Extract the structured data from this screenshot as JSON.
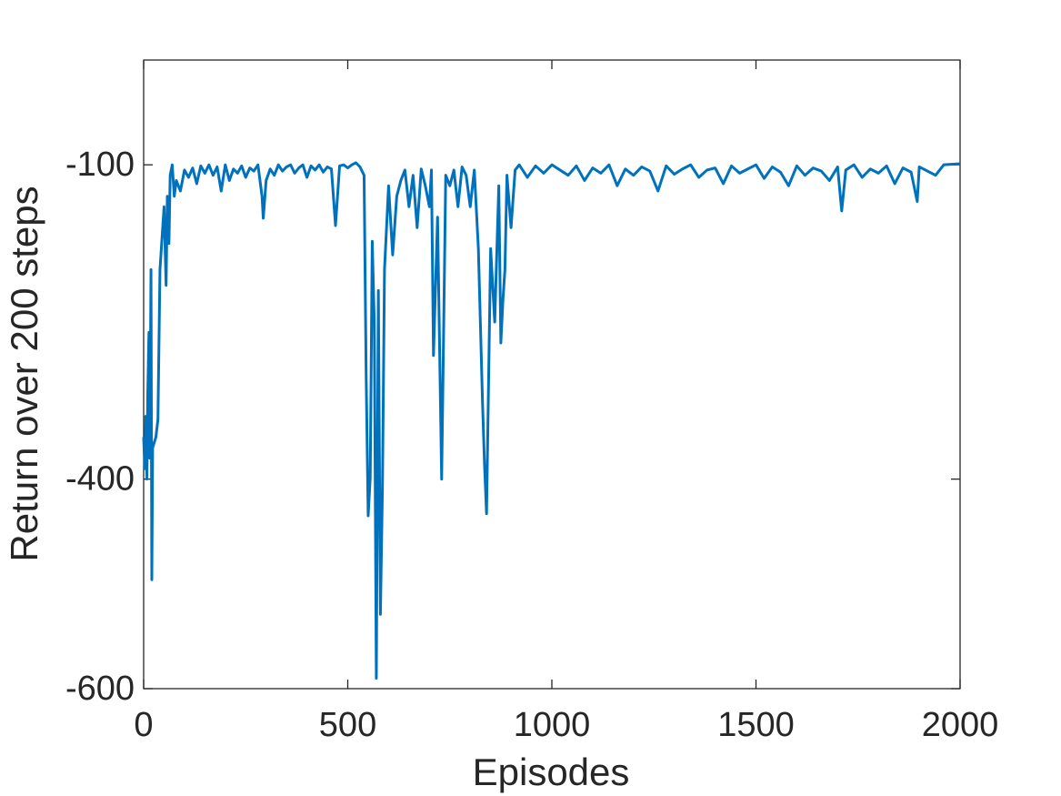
{
  "chart_data": {
    "type": "line",
    "xlabel": "Episodes",
    "ylabel": "Return over 200 steps",
    "xlim": [
      0,
      2000
    ],
    "xticks": [
      0,
      500,
      1000,
      1500,
      2000
    ],
    "ylim": [
      -600,
      0
    ],
    "yticks": [
      -600,
      -400,
      -100
    ],
    "x": [
      0,
      3,
      5,
      8,
      10,
      13,
      15,
      18,
      20,
      22,
      30,
      35,
      40,
      45,
      50,
      55,
      58,
      62,
      65,
      70,
      75,
      80,
      90,
      100,
      110,
      120,
      130,
      140,
      150,
      160,
      170,
      180,
      190,
      200,
      210,
      220,
      230,
      240,
      250,
      260,
      270,
      280,
      290,
      293,
      300,
      310,
      320,
      330,
      340,
      350,
      360,
      370,
      380,
      390,
      400,
      410,
      420,
      430,
      440,
      450,
      460,
      470,
      480,
      490,
      500,
      510,
      520,
      530,
      540,
      545,
      550,
      555,
      560,
      565,
      570,
      575,
      580,
      585,
      590,
      600,
      610,
      620,
      630,
      640,
      650,
      660,
      670,
      680,
      690,
      700,
      705,
      710,
      720,
      730,
      740,
      750,
      760,
      770,
      780,
      790,
      800,
      810,
      820,
      830,
      835,
      840,
      850,
      860,
      870,
      875,
      880,
      885,
      890,
      900,
      910,
      920,
      940,
      960,
      980,
      1000,
      1020,
      1040,
      1060,
      1080,
      1100,
      1120,
      1140,
      1160,
      1180,
      1200,
      1220,
      1240,
      1260,
      1280,
      1300,
      1320,
      1340,
      1360,
      1380,
      1400,
      1420,
      1440,
      1460,
      1480,
      1500,
      1520,
      1540,
      1560,
      1580,
      1600,
      1620,
      1640,
      1660,
      1680,
      1700,
      1710,
      1720,
      1740,
      1760,
      1780,
      1800,
      1820,
      1840,
      1860,
      1880,
      1895,
      1900,
      1940,
      1960,
      2000
    ],
    "series": [
      {
        "color": "#0072bd",
        "values": [
          -360,
          -390,
          -340,
          -400,
          -320,
          -260,
          -380,
          -200,
          -496,
          -370,
          -360,
          -343,
          -200,
          -170,
          -140,
          -215,
          -130,
          -175,
          -110,
          -100,
          -130,
          -115,
          -125,
          -105,
          -112,
          -103,
          -118,
          -101,
          -108,
          -100,
          -110,
          -102,
          -125,
          -100,
          -115,
          -104,
          -108,
          -101,
          -112,
          -103,
          -106,
          -100,
          -130,
          -151,
          -115,
          -104,
          -110,
          -100,
          -106,
          -102,
          -100,
          -108,
          -103,
          -100,
          -112,
          -101,
          -105,
          -100,
          -107,
          -102,
          -104,
          -158,
          -101,
          -100,
          -103,
          -100,
          -98,
          -102,
          -110,
          -299,
          -435,
          -399,
          -173,
          -250,
          -590,
          -220,
          -529,
          -408,
          -200,
          -120,
          -186,
          -130,
          -115,
          -105,
          -140,
          -110,
          -160,
          -104,
          -120,
          -140,
          -105,
          -282,
          -150,
          -400,
          -110,
          -120,
          -105,
          -140,
          -102,
          -110,
          -140,
          -105,
          -180,
          -325,
          -386,
          -433,
          -180,
          -250,
          -120,
          -270,
          -230,
          -200,
          -110,
          -160,
          -105,
          -100,
          -112,
          -101,
          -108,
          -100,
          -105,
          -110,
          -101,
          -115,
          -103,
          -108,
          -100,
          -120,
          -104,
          -110,
          -102,
          -106,
          -125,
          -101,
          -109,
          -104,
          -100,
          -112,
          -105,
          -103,
          -118,
          -101,
          -108,
          -104,
          -100,
          -113,
          -102,
          -107,
          -120,
          -101,
          -110,
          -103,
          -106,
          -115,
          -102,
          -144,
          -105,
          -100,
          -112,
          -104,
          -108,
          -101,
          -118,
          -103,
          -107,
          -135,
          -102,
          -110,
          -100,
          -99
        ]
      }
    ]
  }
}
